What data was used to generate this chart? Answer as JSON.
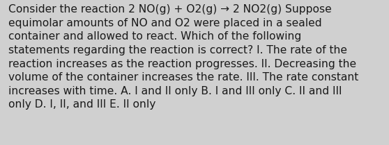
{
  "lines": [
    "Consider the reaction 2 NO(g) + O2(g) → 2 NO2(g) Suppose",
    "equimolar amounts of NO and O2 were placed in a sealed",
    "container and allowed to react. Which of the following",
    "statements regarding the reaction is correct? I. The rate of the",
    "reaction increases as the reaction progresses. II. Decreasing the",
    "volume of the container increases the rate. III. The rate constant",
    "increases with time. A. I and II only B. I and III only C. II and III",
    "only D. I, II, and III E. II only"
  ],
  "background_color": "#d0d0d0",
  "text_color": "#1a1a1a",
  "font_size": 11.2,
  "fig_width": 5.58,
  "fig_height": 2.09,
  "dpi": 100
}
